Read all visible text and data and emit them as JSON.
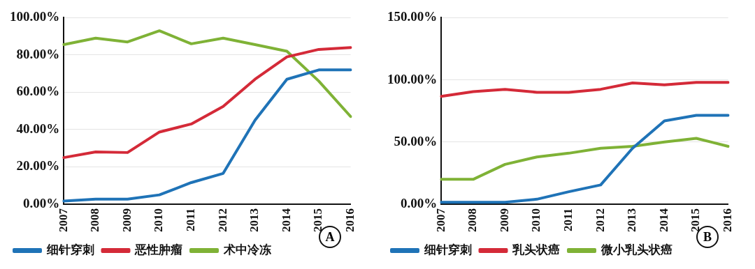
{
  "chart_data": [
    {
      "type": "line",
      "categories": [
        "2007",
        "2008",
        "2009",
        "2010",
        "2011",
        "2012",
        "2013",
        "2014",
        "2015",
        "2016"
      ],
      "series": [
        {
          "name": "细针穿刺",
          "color": "#1f73b7",
          "values": [
            1.7,
            2.7,
            2.7,
            5,
            11.6,
            16.5,
            45,
            67,
            72,
            72
          ]
        },
        {
          "name": "恶性肿瘤",
          "color": "#d42a38",
          "values": [
            25,
            28,
            27.7,
            38.7,
            43,
            52.4,
            67,
            79,
            83,
            84
          ]
        },
        {
          "name": "术中冷冻",
          "color": "#7fb236",
          "values": [
            85.6,
            89,
            87,
            93,
            86,
            89,
            85.6,
            82,
            66,
            47
          ]
        }
      ],
      "ylim": [
        0,
        100
      ],
      "yticks": [
        {
          "value": 0,
          "label": "0.00%"
        },
        {
          "value": 20,
          "label": "20.00%"
        },
        {
          "value": 40,
          "label": "40.00%"
        },
        {
          "value": 60,
          "label": "60.00%"
        },
        {
          "value": 80,
          "label": "80.00%"
        },
        {
          "value": 100,
          "label": "100.00%"
        }
      ],
      "grid": "y",
      "legend": "bottom",
      "marker": "none",
      "annotations": [
        "A"
      ]
    },
    {
      "type": "line",
      "categories": [
        "2007",
        "2008",
        "2009",
        "2010",
        "2011",
        "2012",
        "2013",
        "2014",
        "2015",
        "2016"
      ],
      "series": [
        {
          "name": "细针穿刺",
          "color": "#1f73b7",
          "values": [
            1.6,
            1.6,
            1.6,
            4,
            10,
            15.5,
            45,
            67,
            71.5,
            71.5
          ]
        },
        {
          "name": "乳头状癌",
          "color": "#d42a38",
          "values": [
            86.7,
            90.5,
            92.4,
            90,
            90,
            92.4,
            97.5,
            96,
            98,
            98
          ]
        },
        {
          "name": "微小乳头状癌",
          "color": "#7fb236",
          "values": [
            20,
            20,
            32,
            38,
            41,
            45,
            46.5,
            50,
            53,
            46.5
          ]
        }
      ],
      "ylim": [
        0,
        150
      ],
      "yticks": [
        {
          "value": 0,
          "label": "0.00%"
        },
        {
          "value": 50,
          "label": "50.00%"
        },
        {
          "value": 100,
          "label": "100.00%"
        },
        {
          "value": 150,
          "label": "150.00%"
        }
      ],
      "grid": "y",
      "legend": "bottom",
      "marker": "none",
      "annotations": [
        "B"
      ]
    }
  ]
}
